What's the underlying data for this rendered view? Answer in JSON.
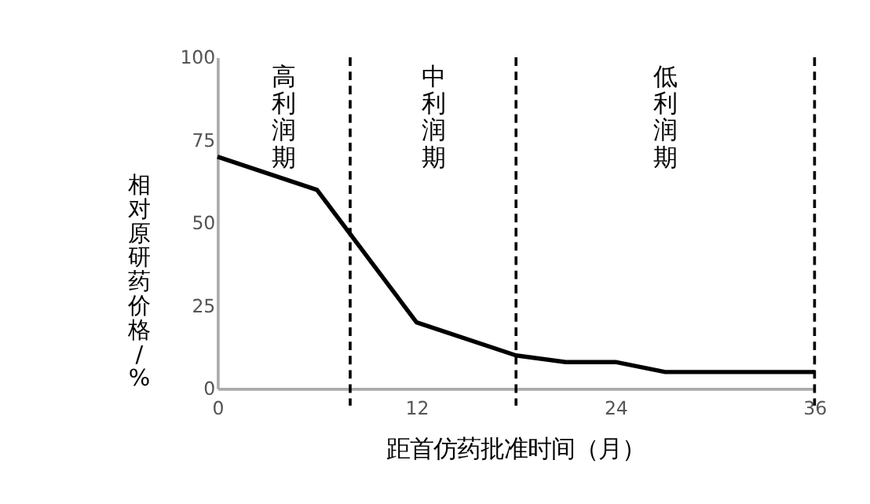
{
  "chart_data": {
    "type": "line",
    "xlabel": "距首仿药批准时间（月）",
    "ylabel": "相对原研药价格/%",
    "x": [
      0,
      6,
      12,
      18,
      21,
      24,
      27,
      36
    ],
    "series": [
      {
        "color": "#000000",
        "values": [
          70,
          60,
          20,
          10,
          8,
          8,
          5,
          5
        ]
      }
    ],
    "xlim": [
      0,
      36
    ],
    "xticks": [
      0,
      12,
      24,
      36
    ],
    "ylim": [
      0,
      100
    ],
    "yticks": [
      0,
      25,
      50,
      75,
      100
    ],
    "grid": false,
    "marker": "none",
    "line_style": "solid",
    "ref_lines": [
      {
        "axis": "x",
        "value": 8,
        "color": "#000000",
        "line_style": "dashed"
      },
      {
        "axis": "x",
        "value": 18,
        "color": "#000000",
        "line_style": "dashed"
      },
      {
        "axis": "x",
        "value": 36,
        "color": "#000000",
        "line_style": "dashed"
      }
    ],
    "annotations": [
      "高利润期",
      "中利润期",
      "低利润期"
    ]
  }
}
